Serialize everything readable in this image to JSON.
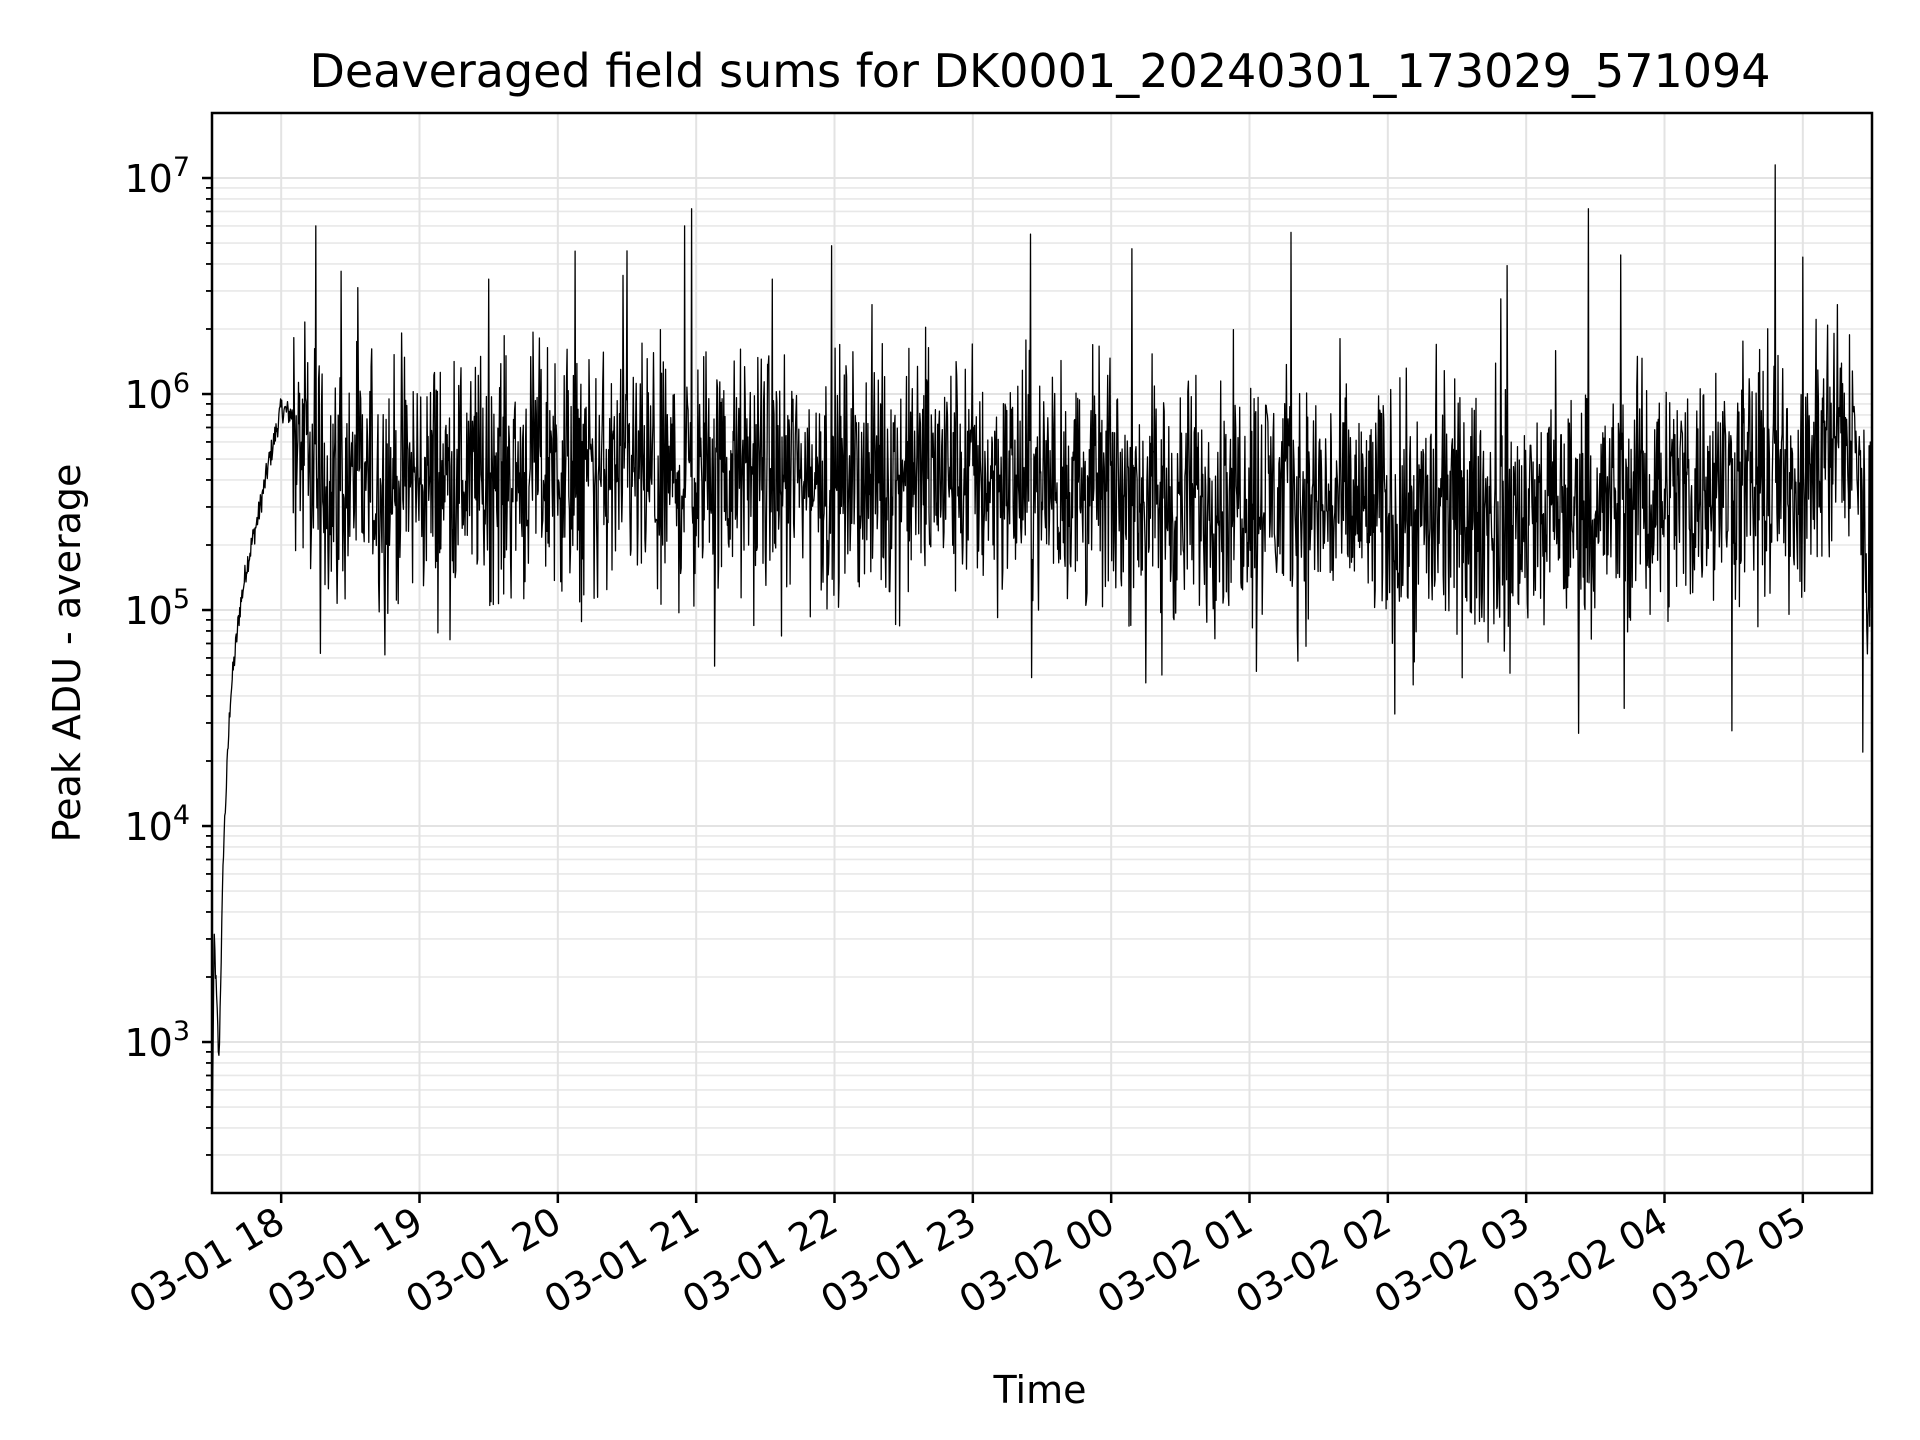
{
  "chart_data": {
    "type": "line",
    "title": "Deaveraged field sums for DK0001_20240301_173029_571094",
    "xlabel": "Time",
    "ylabel": "Peak ADU - average",
    "x_scale": "time",
    "y_scale": "log",
    "xlim": [
      "2024-03-01 17:30",
      "2024-03-02 05:30"
    ],
    "ylim": [
      200,
      20000000
    ],
    "grid": true,
    "x_tick_labels": [
      "03-01 18",
      "03-01 19",
      "03-01 20",
      "03-01 21",
      "03-01 22",
      "03-01 23",
      "03-02 00",
      "03-02 01",
      "03-02 02",
      "03-02 03",
      "03-02 04",
      "03-02 05"
    ],
    "y_ticks": [
      1000,
      10000,
      100000,
      1000000,
      10000000
    ],
    "y_tick_labels": [
      {
        "base": "10",
        "exp": "3"
      },
      {
        "base": "10",
        "exp": "4"
      },
      {
        "base": "10",
        "exp": "5"
      },
      {
        "base": "10",
        "exp": "6"
      },
      {
        "base": "10",
        "exp": "7"
      }
    ],
    "series": [
      {
        "color": "#000000",
        "x": [
          "2024-03-01 17:30",
          "2024-03-01 17:31",
          "2024-03-01 17:33",
          "2024-03-01 17:35",
          "2024-03-01 17:38",
          "2024-03-01 17:42",
          "2024-03-01 17:45",
          "2024-03-01 17:50",
          "2024-03-01 17:55",
          "2024-03-01 18:00",
          "2024-03-01 18:05",
          "2024-03-01 18:10",
          "2024-03-01 18:15",
          "2024-03-01 18:30",
          "2024-03-01 19:00",
          "2024-03-01 19:30",
          "2024-03-01 20:00",
          "2024-03-01 20:30",
          "2024-03-01 21:00",
          "2024-03-01 21:30",
          "2024-03-01 22:00",
          "2024-03-01 22:30",
          "2024-03-01 23:00",
          "2024-03-01 23:30",
          "2024-03-02 00:00",
          "2024-03-02 00:30",
          "2024-03-02 01:00",
          "2024-03-02 01:30",
          "2024-03-02 02:00",
          "2024-03-02 02:30",
          "2024-03-02 03:00",
          "2024-03-02 03:30",
          "2024-03-02 04:00",
          "2024-03-02 04:30",
          "2024-03-02 05:00",
          "2024-03-02 05:15",
          "2024-03-02 05:20",
          "2024-03-02 05:25",
          "2024-03-02 05:28",
          "2024-03-02 05:30"
        ],
        "y": [
          350,
          3000,
          800,
          8000,
          40000,
          100000,
          160000,
          270000,
          500000,
          850000,
          800000,
          500000,
          400000,
          380000,
          400000,
          420000,
          450000,
          400000,
          410000,
          420000,
          400000,
          420000,
          420000,
          380000,
          360000,
          300000,
          380000,
          310000,
          280000,
          270000,
          270000,
          290000,
          360000,
          380000,
          400000,
          700000,
          620000,
          400000,
          150000,
          200000
        ],
        "spikes": [
          {
            "x": "2024-03-01 18:15",
            "y": 6000000
          },
          {
            "x": "2024-03-01 18:26",
            "y": 3700000
          },
          {
            "x": "2024-03-01 19:30",
            "y": 3400000
          },
          {
            "x": "2024-03-01 20:30",
            "y": 4600000
          },
          {
            "x": "2024-03-01 20:55",
            "y": 6000000
          },
          {
            "x": "2024-03-01 20:58",
            "y": 7200000
          },
          {
            "x": "2024-03-01 23:25",
            "y": 5500000
          },
          {
            "x": "2024-03-02 00:09",
            "y": 4700000
          },
          {
            "x": "2024-03-02 01:18",
            "y": 5600000
          },
          {
            "x": "2024-03-02 03:27",
            "y": 7200000
          },
          {
            "x": "2024-03-02 03:41",
            "y": 4400000
          },
          {
            "x": "2024-03-02 04:48",
            "y": 11500000
          },
          {
            "x": "2024-03-02 05:00",
            "y": 4300000
          }
        ],
        "dips": [
          {
            "x": "2024-03-01 18:17",
            "y": 63000
          },
          {
            "x": "2024-03-01 18:45",
            "y": 62000
          },
          {
            "x": "2024-03-01 21:08",
            "y": 55000
          },
          {
            "x": "2024-03-02 00:15",
            "y": 46000
          },
          {
            "x": "2024-03-02 00:22",
            "y": 50000
          },
          {
            "x": "2024-03-02 01:03",
            "y": 52000
          },
          {
            "x": "2024-03-02 02:03",
            "y": 33000
          },
          {
            "x": "2024-03-02 02:11",
            "y": 45000
          },
          {
            "x": "2024-03-02 02:53",
            "y": 51000
          },
          {
            "x": "2024-03-02 05:26",
            "y": 22000
          }
        ],
        "noise_band": [
          150000,
          1000000
        ]
      }
    ]
  }
}
